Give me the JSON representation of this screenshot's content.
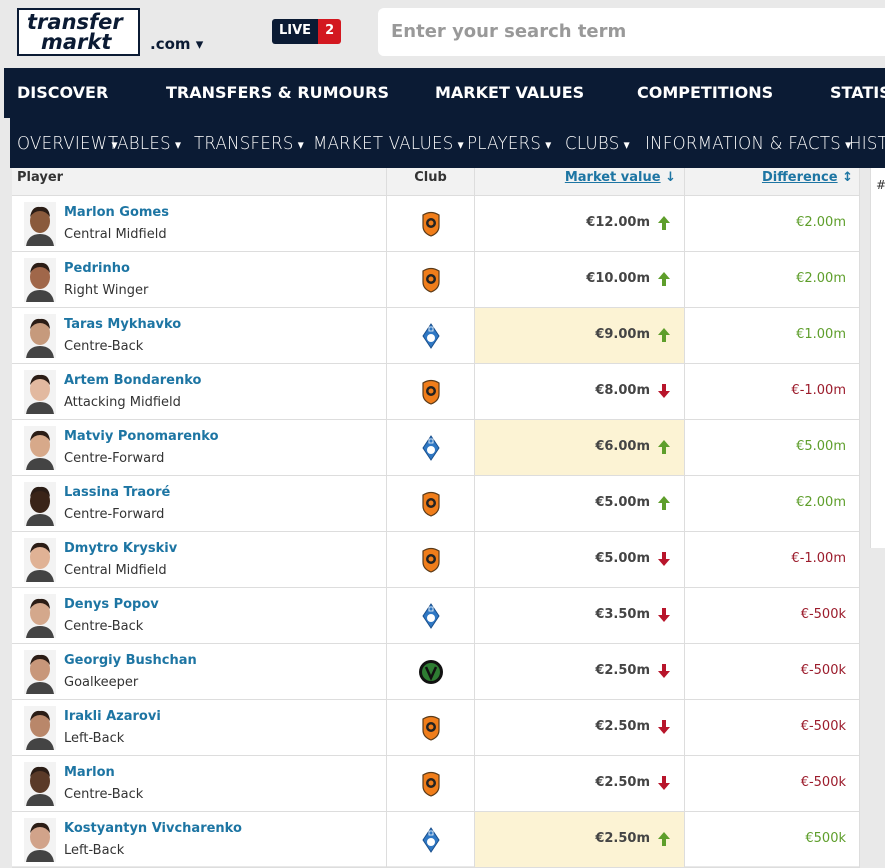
{
  "header": {
    "logo_line1": "transfer",
    "logo_line2": "markt",
    "domain": ".com",
    "live": "LIVE",
    "live_count": "2",
    "search_placeholder": "Enter your search term"
  },
  "main_nav": [
    "DISCOVER",
    "TRANSFERS & RUMOURS",
    "MARKET VALUES",
    "COMPETITIONS",
    "STATIS"
  ],
  "sub_nav": [
    "OVERVIEW",
    "TABLES",
    "TRANSFERS",
    "MARKET VALUES",
    "PLAYERS",
    "CLUBS",
    "INFORMATION & FACTS",
    "HIST"
  ],
  "side_header": "#",
  "table": {
    "columns": [
      "Player",
      "Club",
      "Market value",
      "Difference"
    ],
    "rows": [
      {
        "name": "Marlon Gomes",
        "position": "Central Midfield",
        "value": "€12.00m",
        "difference": "€2.00m"
      },
      {
        "name": "Pedrinho",
        "position": "Right Winger",
        "value": "€10.00m",
        "difference": "€2.00m"
      },
      {
        "name": "Taras Mykhavko",
        "position": "Centre-Back",
        "value": "€9.00m",
        "difference": "€1.00m"
      },
      {
        "name": "Artem Bondarenko",
        "position": "Attacking Midfield",
        "value": "€8.00m",
        "difference": "€-1.00m"
      },
      {
        "name": "Matviy Ponomarenko",
        "position": "Centre-Forward",
        "value": "€6.00m",
        "difference": "€5.00m"
      },
      {
        "name": "Lassina Traoré",
        "position": "Centre-Forward",
        "value": "€5.00m",
        "difference": "€2.00m"
      },
      {
        "name": "Dmytro Kryskiv",
        "position": "Central Midfield",
        "value": "€5.00m",
        "difference": "€-1.00m"
      },
      {
        "name": "Denys Popov",
        "position": "Centre-Back",
        "value": "€3.50m",
        "difference": "€-500k"
      },
      {
        "name": "Georgiy Bushchan",
        "position": "Goalkeeper",
        "value": "€2.50m",
        "difference": "€-500k"
      },
      {
        "name": "Irakli Azarovi",
        "position": "Left-Back",
        "value": "€2.50m",
        "difference": "€-500k"
      },
      {
        "name": "Marlon",
        "position": "Centre-Back",
        "value": "€2.50m",
        "difference": "€-500k"
      },
      {
        "name": "Kostyantyn Vivcharenko",
        "position": "Left-Back",
        "value": "€2.50m",
        "difference": "€500k"
      }
    ]
  }
}
